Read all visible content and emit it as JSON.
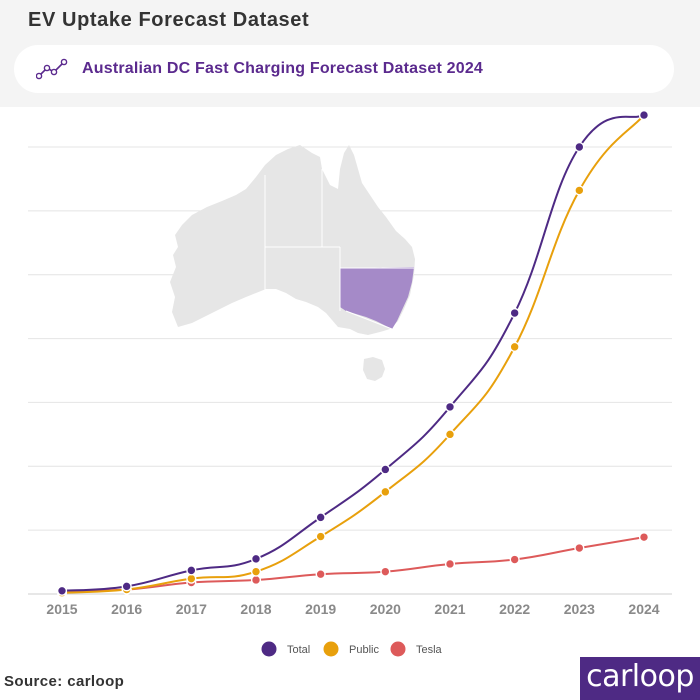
{
  "header": {
    "title": "EV Uptake Forecast Dataset",
    "subtitle": "Australian DC Fast Charging Forecast Dataset 2024",
    "icon": "line-chart-icon"
  },
  "footer": {
    "source": "Source: carloop",
    "brand": "carloop",
    "brand_color": "#4e2a84"
  },
  "map": {
    "land_color": "#e6e6e6",
    "highlight_color": "#a58ac8",
    "highlight_state": "New South Wales"
  },
  "chart_data": {
    "type": "line",
    "title": "Australian DC Fast Charging Forecast Dataset 2024",
    "xlabel": "",
    "ylabel": "",
    "x": [
      "2015",
      "2016",
      "2017",
      "2018",
      "2019",
      "2020",
      "2021",
      "2022",
      "2023",
      "2024"
    ],
    "ylim": [
      0,
      70
    ],
    "yticks": [
      0,
      10,
      20,
      30,
      40,
      50,
      60,
      70
    ],
    "ytick_labels_visible": false,
    "grid": true,
    "legend_position": "bottom-center",
    "series": [
      {
        "name": "Total",
        "color": "#4e2a84",
        "values": [
          0.5,
          1.2,
          3.7,
          5.5,
          12.0,
          19.5,
          29.3,
          44.0,
          70.0,
          75.0
        ]
      },
      {
        "name": "Public",
        "color": "#e8a00c",
        "values": [
          0.2,
          0.7,
          2.4,
          3.5,
          9.0,
          16.0,
          25.0,
          38.7,
          63.2,
          75.0
        ]
      },
      {
        "name": "Tesla",
        "color": "#dd5a5a",
        "values": [
          0.5,
          0.7,
          1.8,
          2.2,
          3.1,
          3.5,
          4.7,
          5.4,
          7.2,
          8.9
        ]
      }
    ]
  }
}
